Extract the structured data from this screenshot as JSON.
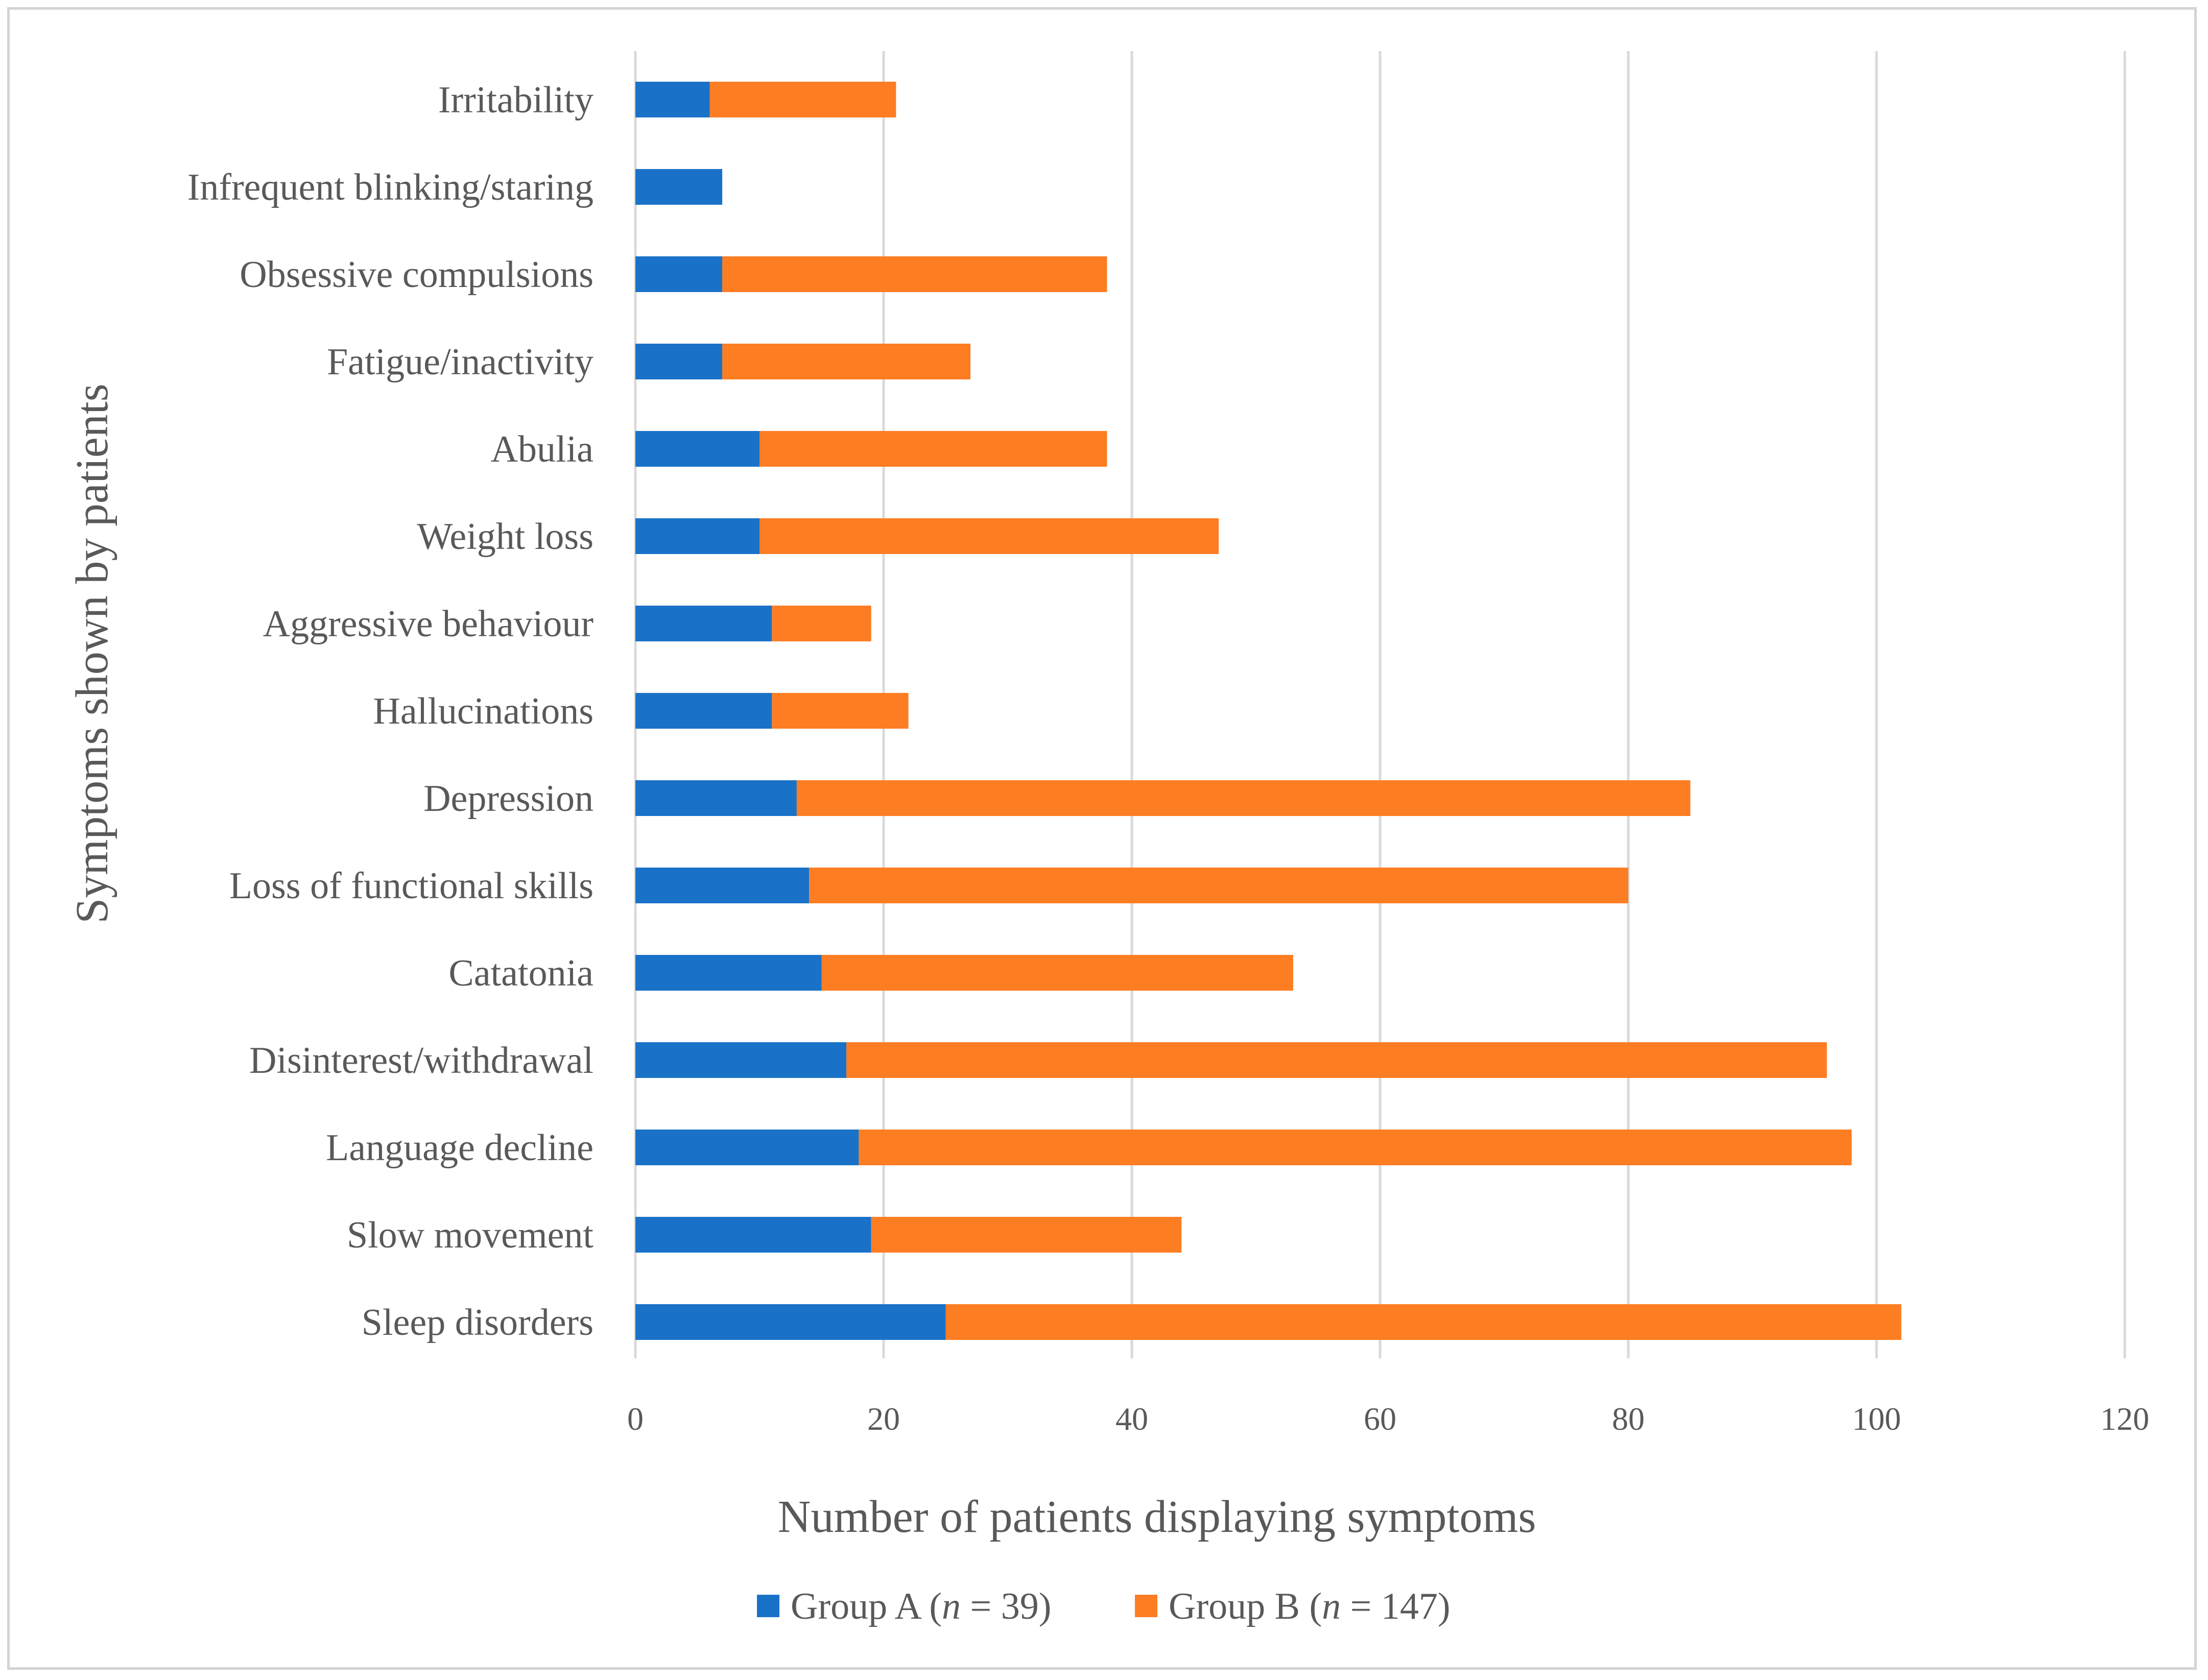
{
  "chart_data": {
    "type": "bar",
    "orientation": "horizontal",
    "stacked": true,
    "categories": [
      "Irritability",
      "Infrequent blinking/staring",
      "Obsessive compulsions",
      "Fatigue/inactivity",
      "Abulia",
      "Weight loss",
      "Aggressive behaviour",
      "Hallucinations",
      "Depression",
      "Loss of functional skills",
      "Catatonia",
      "Disinterest/withdrawal",
      "Language decline",
      "Slow movement",
      "Sleep disorders"
    ],
    "series": [
      {
        "name": "Group A",
        "legend_prefix": "Group A (",
        "legend_n": "n",
        "legend_suffix": " = 39)",
        "color": "#1a72c8",
        "values": [
          6,
          7,
          7,
          7,
          10,
          10,
          11,
          11,
          13,
          14,
          15,
          17,
          18,
          19,
          25
        ]
      },
      {
        "name": "Group B",
        "legend_prefix": "Group B (",
        "legend_n": "n",
        "legend_suffix": " = 147)",
        "color": "#fd7d23",
        "values": [
          15,
          0,
          31,
          20,
          28,
          37,
          8,
          11,
          72,
          66,
          38,
          79,
          80,
          25,
          77
        ]
      }
    ],
    "xlim": [
      0,
      120
    ],
    "xticks": [
      0,
      20,
      40,
      60,
      80,
      100,
      120
    ],
    "xlabel": "Number of patients displaying symptoms",
    "ylabel": "Symptoms shown by patients",
    "grid": "vertical",
    "legend_position": "bottom-center",
    "gridline_color": "#d9d9d9",
    "text_color": "#595959"
  }
}
